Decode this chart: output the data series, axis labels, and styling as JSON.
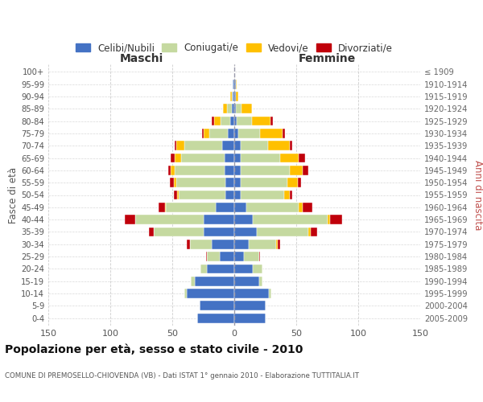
{
  "age_groups": [
    "0-4",
    "5-9",
    "10-14",
    "15-19",
    "20-24",
    "25-29",
    "30-34",
    "35-39",
    "40-44",
    "45-49",
    "50-54",
    "55-59",
    "60-64",
    "65-69",
    "70-74",
    "75-79",
    "80-84",
    "85-89",
    "90-94",
    "95-99",
    "100+"
  ],
  "birth_years": [
    "2005-2009",
    "2000-2004",
    "1995-1999",
    "1990-1994",
    "1985-1989",
    "1980-1984",
    "1975-1979",
    "1970-1974",
    "1965-1969",
    "1960-1964",
    "1955-1959",
    "1950-1954",
    "1945-1949",
    "1940-1944",
    "1935-1939",
    "1930-1934",
    "1925-1929",
    "1920-1924",
    "1915-1919",
    "1910-1914",
    "≤ 1909"
  ],
  "male": {
    "celibi": [
      30,
      28,
      38,
      32,
      22,
      12,
      18,
      25,
      25,
      15,
      7,
      7,
      8,
      8,
      10,
      5,
      3,
      2,
      1,
      1,
      0
    ],
    "coniugati": [
      0,
      0,
      2,
      3,
      5,
      10,
      18,
      40,
      55,
      40,
      38,
      40,
      40,
      35,
      30,
      15,
      8,
      4,
      1,
      0,
      0
    ],
    "vedovi": [
      0,
      0,
      0,
      0,
      0,
      0,
      0,
      0,
      0,
      1,
      1,
      2,
      3,
      5,
      7,
      5,
      5,
      3,
      1,
      0,
      0
    ],
    "divorziati": [
      0,
      0,
      0,
      0,
      0,
      1,
      2,
      4,
      8,
      5,
      3,
      3,
      2,
      3,
      1,
      1,
      2,
      0,
      0,
      0,
      0
    ]
  },
  "female": {
    "nubili": [
      25,
      25,
      28,
      20,
      15,
      8,
      12,
      18,
      15,
      10,
      5,
      5,
      5,
      5,
      5,
      3,
      2,
      1,
      1,
      1,
      0
    ],
    "coniugate": [
      0,
      0,
      2,
      3,
      8,
      12,
      22,
      42,
      60,
      42,
      35,
      38,
      40,
      32,
      22,
      18,
      12,
      5,
      0,
      0,
      0
    ],
    "vedove": [
      0,
      0,
      0,
      0,
      0,
      0,
      1,
      2,
      2,
      3,
      5,
      8,
      10,
      15,
      18,
      18,
      15,
      8,
      2,
      1,
      0
    ],
    "divorziate": [
      0,
      0,
      0,
      0,
      0,
      1,
      2,
      5,
      10,
      8,
      2,
      3,
      5,
      5,
      2,
      2,
      2,
      0,
      0,
      0,
      0
    ]
  },
  "colors": {
    "celibi": "#4472c4",
    "coniugati": "#c5d9a0",
    "vedovi": "#ffc000",
    "divorziati": "#c0000b"
  },
  "legend_labels": [
    "Celibi/Nubili",
    "Coniugati/e",
    "Vedovi/e",
    "Divorziati/e"
  ],
  "title": "Popolazione per età, sesso e stato civile - 2010",
  "subtitle": "COMUNE DI PREMOSELLO-CHIOVENDA (VB) - Dati ISTAT 1° gennaio 2010 - Elaborazione TUTTITALIA.IT",
  "xlabel_left": "Maschi",
  "xlabel_right": "Femmine",
  "ylabel_left": "Fasce di età",
  "ylabel_right": "Anni di nascita",
  "xlim": 150,
  "background_color": "#ffffff",
  "grid_color": "#c8c8c8"
}
